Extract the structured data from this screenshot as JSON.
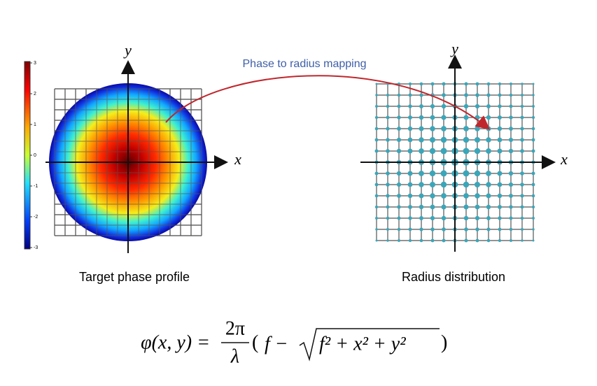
{
  "mapping_label": "Phase to radius mapping",
  "left_panel": {
    "caption": "Target phase profile",
    "x_axis": "x",
    "y_axis": "y",
    "colorbar": {
      "ticks": [
        "3",
        "2",
        "1",
        "0",
        "-1",
        "-2",
        "-3"
      ]
    }
  },
  "right_panel": {
    "caption": "Radius distribution",
    "x_axis": "x",
    "y_axis": "y"
  },
  "formula": {
    "lhs": "φ(x, y) =",
    "numerator": "2π",
    "denominator": "λ",
    "open": "(",
    "term": "f −",
    "radicand": "f² + x² + y²",
    "close": ")"
  }
}
